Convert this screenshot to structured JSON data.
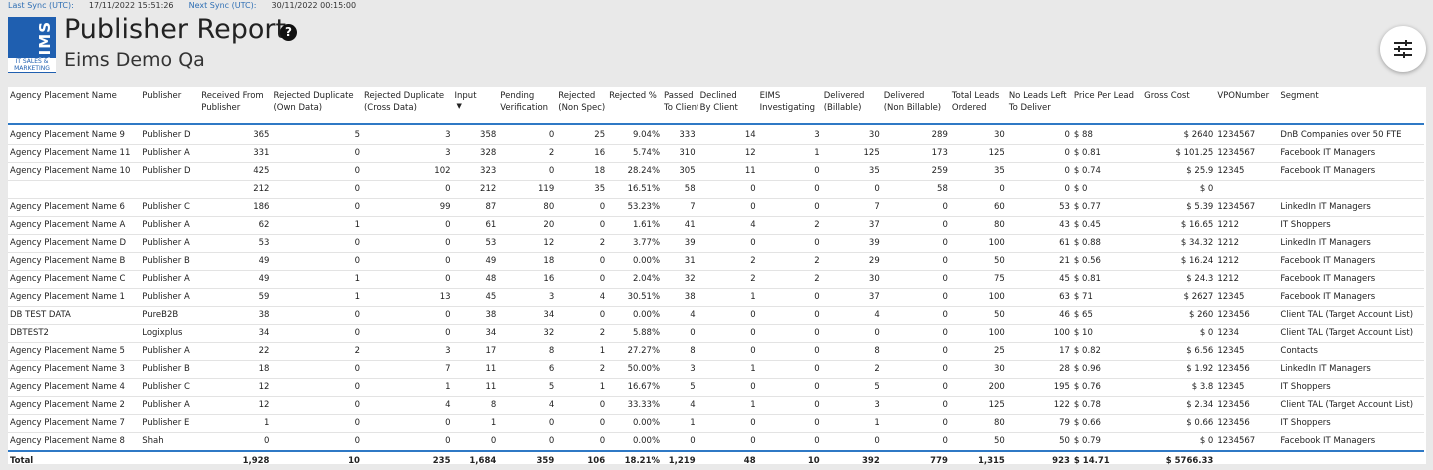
{
  "sync": {
    "last_label": "Last Sync (UTC):",
    "last_value": "17/11/2022 15:51:26",
    "next_label": "Next Sync (UTC):",
    "next_value": "30/11/2022 00:15:00"
  },
  "logo": {
    "big": "EIMS",
    "small": "IT SALES & MARKETING"
  },
  "header": {
    "title": "Publisher Report",
    "subtitle": "Eims Demo Qa",
    "help_icon": "?"
  },
  "icons": {
    "help": "question-circle-icon",
    "filter": "sliders-icon",
    "sort": "sort-down-icon"
  },
  "colors": {
    "accent": "#2f79c5",
    "logo": "#1f5fb0",
    "sync_label": "#2f6fb4"
  },
  "table": {
    "columns": [
      {
        "key": "name",
        "l1": "Agency Placement Name",
        "l2": "",
        "num": false
      },
      {
        "key": "publisher",
        "l1": "Publisher",
        "l2": "",
        "num": false
      },
      {
        "key": "received",
        "l1": "Received From",
        "l2": "Publisher",
        "num": true
      },
      {
        "key": "rej_own",
        "l1": "Rejected Duplicate",
        "l2": "(Own Data)",
        "num": true
      },
      {
        "key": "rej_cross",
        "l1": "Rejected Duplicate",
        "l2": "(Cross Data)",
        "num": true
      },
      {
        "key": "input",
        "l1": "Input",
        "l2": "",
        "num": true,
        "sorted": true
      },
      {
        "key": "pending",
        "l1": "Pending",
        "l2": "Verification",
        "num": true
      },
      {
        "key": "rej_ns",
        "l1": "Rejected",
        "l2": "(Non Spec)",
        "num": true
      },
      {
        "key": "rej_pct",
        "l1": "Rejected %",
        "l2": "",
        "num": true
      },
      {
        "key": "passed",
        "l1": "Passed",
        "l2": "To Client",
        "num": true
      },
      {
        "key": "declined",
        "l1": "Declined",
        "l2": "By Client",
        "num": true
      },
      {
        "key": "eims",
        "l1": "EIMS",
        "l2": "Investigating",
        "num": true
      },
      {
        "key": "del_b",
        "l1": "Delivered",
        "l2": "(Billable)",
        "num": true
      },
      {
        "key": "del_nb",
        "l1": "Delivered",
        "l2": "(Non Billable)",
        "num": true
      },
      {
        "key": "total_leads",
        "l1": "Total Leads",
        "l2": "Ordered",
        "num": true
      },
      {
        "key": "left",
        "l1": "No Leads Left",
        "l2": "To Deliver",
        "num": true
      },
      {
        "key": "ppl",
        "l1": "Price Per Lead",
        "l2": "",
        "num": false
      },
      {
        "key": "gross",
        "l1": "Gross Cost",
        "l2": "",
        "num": true
      },
      {
        "key": "vpo",
        "l1": "VPONumber",
        "l2": "",
        "num": false
      },
      {
        "key": "segment",
        "l1": "Segment",
        "l2": "",
        "num": false
      }
    ],
    "rows": [
      [
        "Agency Placement Name 9",
        "Publisher D",
        "365",
        "5",
        "3",
        "358",
        "0",
        "25",
        "9.04%",
        "333",
        "14",
        "3",
        "30",
        "289",
        "30",
        "0",
        "$ 88",
        "$ 2640",
        "1234567",
        "DnB Companies over 50 FTE"
      ],
      [
        "Agency Placement Name 11",
        "Publisher A",
        "331",
        "0",
        "3",
        "328",
        "2",
        "16",
        "5.74%",
        "310",
        "12",
        "1",
        "125",
        "173",
        "125",
        "0",
        "$ 0.81",
        "$ 101.25",
        "1234567",
        "Facebook IT Managers"
      ],
      [
        "Agency Placement Name 10",
        "Publisher D",
        "425",
        "0",
        "102",
        "323",
        "0",
        "18",
        "28.24%",
        "305",
        "11",
        "0",
        "35",
        "259",
        "35",
        "0",
        "$ 0.74",
        "$ 25.9",
        "12345",
        "Facebook IT Managers"
      ],
      [
        "",
        "",
        "212",
        "0",
        "0",
        "212",
        "119",
        "35",
        "16.51%",
        "58",
        "0",
        "0",
        "0",
        "58",
        "0",
        "0",
        "$ 0",
        "$ 0",
        "",
        ""
      ],
      [
        "Agency Placement Name 6",
        "Publisher C",
        "186",
        "0",
        "99",
        "87",
        "80",
        "0",
        "53.23%",
        "7",
        "0",
        "0",
        "7",
        "0",
        "60",
        "53",
        "$ 0.77",
        "$ 5.39",
        "1234567",
        "LinkedIn IT Managers"
      ],
      [
        "Agency Placement Name A",
        "Publisher A",
        "62",
        "1",
        "0",
        "61",
        "20",
        "0",
        "1.61%",
        "41",
        "4",
        "2",
        "37",
        "0",
        "80",
        "43",
        "$ 0.45",
        "$ 16.65",
        "1212",
        "IT Shoppers"
      ],
      [
        "Agency Placement Name D",
        "Publisher A",
        "53",
        "0",
        "0",
        "53",
        "12",
        "2",
        "3.77%",
        "39",
        "0",
        "0",
        "39",
        "0",
        "100",
        "61",
        "$ 0.88",
        "$ 34.32",
        "1212",
        "LinkedIn IT Managers"
      ],
      [
        "Agency Placement Name B",
        "Publisher B",
        "49",
        "0",
        "0",
        "49",
        "18",
        "0",
        "0.00%",
        "31",
        "2",
        "2",
        "29",
        "0",
        "50",
        "21",
        "$ 0.56",
        "$ 16.24",
        "1212",
        "Facebook IT Managers"
      ],
      [
        "Agency Placement Name C",
        "Publisher A",
        "49",
        "1",
        "0",
        "48",
        "16",
        "0",
        "2.04%",
        "32",
        "2",
        "2",
        "30",
        "0",
        "75",
        "45",
        "$ 0.81",
        "$ 24.3",
        "1212",
        "Facebook IT Managers"
      ],
      [
        "Agency Placement Name 1",
        "Publisher A",
        "59",
        "1",
        "13",
        "45",
        "3",
        "4",
        "30.51%",
        "38",
        "1",
        "0",
        "37",
        "0",
        "100",
        "63",
        "$ 71",
        "$ 2627",
        "12345",
        "Facebook IT Managers"
      ],
      [
        "DB TEST DATA",
        "PureB2B",
        "38",
        "0",
        "0",
        "38",
        "34",
        "0",
        "0.00%",
        "4",
        "0",
        "0",
        "4",
        "0",
        "50",
        "46",
        "$ 65",
        "$ 260",
        "123456",
        "Client TAL (Target Account List)"
      ],
      [
        "DBTEST2",
        "Logixplus",
        "34",
        "0",
        "0",
        "34",
        "32",
        "2",
        "5.88%",
        "0",
        "0",
        "0",
        "0",
        "0",
        "100",
        "100",
        "$ 10",
        "$ 0",
        "1234",
        "Client TAL (Target Account List)"
      ],
      [
        "Agency Placement Name 5",
        "Publisher A",
        "22",
        "2",
        "3",
        "17",
        "8",
        "1",
        "27.27%",
        "8",
        "0",
        "0",
        "8",
        "0",
        "25",
        "17",
        "$ 0.82",
        "$ 6.56",
        "12345",
        "Contacts"
      ],
      [
        "Agency Placement Name 3",
        "Publisher B",
        "18",
        "0",
        "7",
        "11",
        "6",
        "2",
        "50.00%",
        "3",
        "1",
        "0",
        "2",
        "0",
        "30",
        "28",
        "$ 0.96",
        "$ 1.92",
        "123456",
        "LinkedIn IT Managers"
      ],
      [
        "Agency Placement Name 4",
        "Publisher C",
        "12",
        "0",
        "1",
        "11",
        "5",
        "1",
        "16.67%",
        "5",
        "0",
        "0",
        "5",
        "0",
        "200",
        "195",
        "$ 0.76",
        "$ 3.8",
        "12345",
        "IT Shoppers"
      ],
      [
        "Agency Placement Name 2",
        "Publisher A",
        "12",
        "0",
        "4",
        "8",
        "4",
        "0",
        "33.33%",
        "4",
        "1",
        "0",
        "3",
        "0",
        "125",
        "122",
        "$ 0.78",
        "$ 2.34",
        "123456",
        "Client TAL (Target Account List)"
      ],
      [
        "Agency Placement Name 7",
        "Publisher E",
        "1",
        "0",
        "0",
        "1",
        "0",
        "0",
        "0.00%",
        "1",
        "0",
        "0",
        "1",
        "0",
        "80",
        "79",
        "$ 0.66",
        "$ 0.66",
        "123456",
        "IT Shoppers"
      ],
      [
        "Agency Placement Name 8",
        "Shah",
        "0",
        "0",
        "0",
        "0",
        "0",
        "0",
        "0.00%",
        "0",
        "0",
        "0",
        "0",
        "0",
        "50",
        "50",
        "$ 0.79",
        "$ 0",
        "1234567",
        "Facebook IT Managers"
      ]
    ],
    "totals": [
      "Total",
      "",
      "1,928",
      "10",
      "235",
      "1,684",
      "359",
      "106",
      "18.21%",
      "1,219",
      "48",
      "10",
      "392",
      "779",
      "1,315",
      "923",
      "$ 14.71",
      "$ 5766.33",
      "",
      ""
    ]
  }
}
